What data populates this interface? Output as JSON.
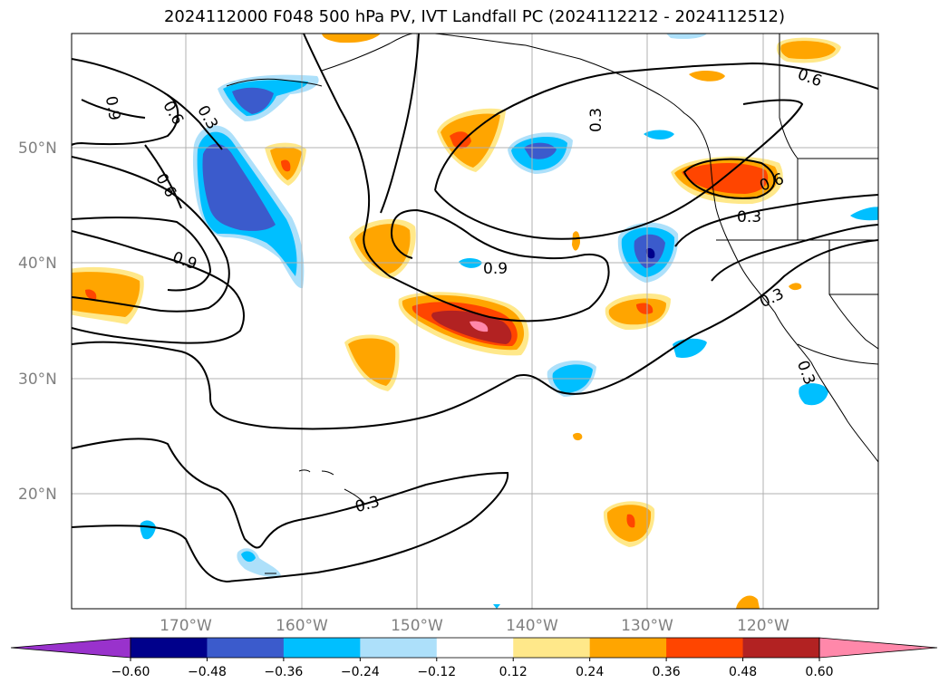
{
  "title": "2024112000 F048 500 hPa PV, IVT Landfall PC (2024112212 - 2024112512)",
  "lat_labels": [
    "50°N",
    "40°N",
    "30°N",
    "20°N"
  ],
  "lon_labels": [
    "170°W",
    "160°W",
    "150°W",
    "140°W",
    "130°W",
    "120°W"
  ],
  "contour_labels": [
    "0.9",
    "0.6",
    "0.3",
    "0.6",
    "0.6",
    "0.9",
    "0.9",
    "0.3",
    "0.6",
    "0.3",
    "0.3",
    "0.3",
    "0.6",
    "0.3"
  ],
  "colorbar": {
    "ticks": [
      "−0.60",
      "−0.48",
      "−0.36",
      "−0.24",
      "−0.12",
      "0.12",
      "0.24",
      "0.36",
      "0.48",
      "0.60"
    ],
    "colors": [
      "#9932CC",
      "#00008B",
      "#3B5BCC",
      "#00BFFF",
      "#ADE0FA",
      "#FFFFFF",
      "#FFE88A",
      "#FFA500",
      "#FF4500",
      "#B22222",
      "#FF88AA"
    ]
  },
  "colors": {
    "neg_strong": "#3B5BCC",
    "neg_mid": "#00BFFF",
    "neg_weak": "#ADE0FA",
    "neg_max": "#00008B",
    "pos_weak": "#FFE88A",
    "pos_mid": "#FFA500",
    "pos_strong": "#FF4500",
    "pos_max": "#B22222",
    "pos_extreme": "#FF88AA",
    "gridline": "#b0b0b0",
    "axis_label": "#808080"
  }
}
